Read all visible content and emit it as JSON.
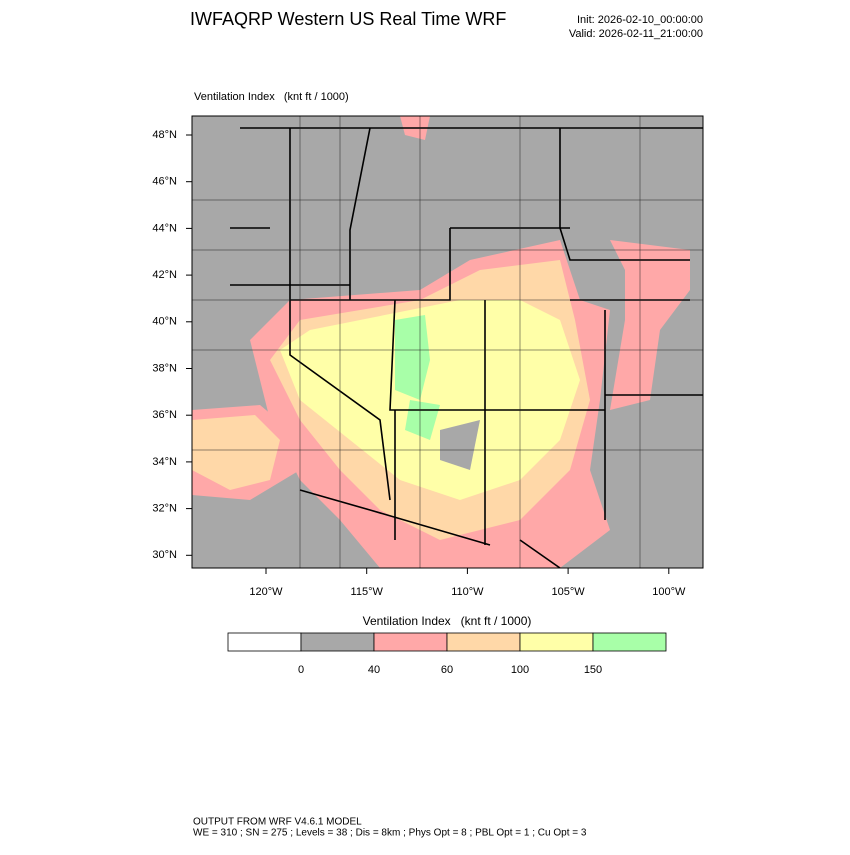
{
  "header": {
    "title": "IWFAQRP Western US Real Time WRF",
    "init": "Init: 2026-02-10_00:00:00",
    "valid": "Valid: 2026-02-11_21:00:00"
  },
  "map": {
    "label": "Ventilation Index   (knt ft / 1000)",
    "lat_ticks": [
      "48°N",
      "46°N",
      "44°N",
      "42°N",
      "40°N",
      "38°N",
      "36°N",
      "34°N",
      "32°N",
      "30°N"
    ],
    "lon_ticks": [
      "120°W",
      "115°W",
      "110°W",
      "105°W",
      "100°W"
    ]
  },
  "colorbar": {
    "title": "Ventilation Index   (knt ft / 1000)",
    "colors": [
      "#ffffff",
      "#a8a8a8",
      "#ffa8a8",
      "#ffd8a8",
      "#ffffa8",
      "#a8ffa8"
    ],
    "labels": [
      "0",
      "40",
      "60",
      "100",
      "150"
    ]
  },
  "footer": {
    "line1": "OUTPUT FROM WRF V4.6.1 MODEL",
    "line2": "WE = 310 ; SN = 275 ; Levels = 38 ; Dis = 8km ; Phys Opt = 8 ; PBL Opt = 1 ; Cu Opt = 3"
  }
}
